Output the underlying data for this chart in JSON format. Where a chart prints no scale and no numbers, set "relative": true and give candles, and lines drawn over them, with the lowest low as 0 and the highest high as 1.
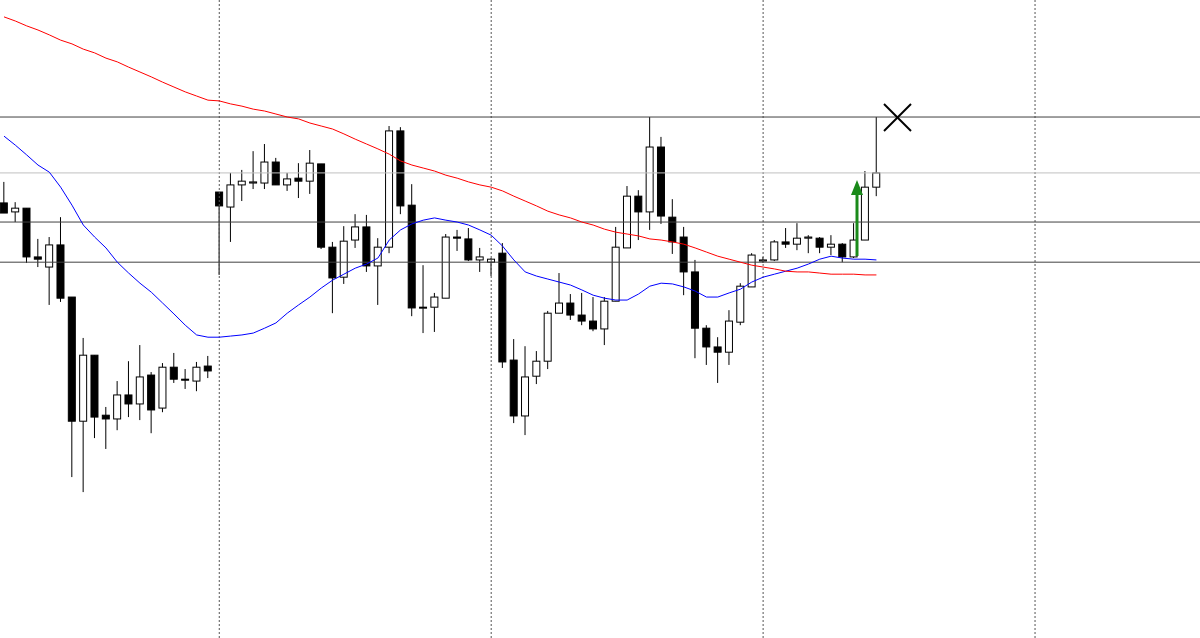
{
  "chart_data": {
    "type": "candlestick",
    "relative": true,
    "marker": "none",
    "grid": "x",
    "categories": [
      null,
      null,
      null,
      null,
      null,
      null,
      null,
      null,
      null,
      null,
      null,
      null,
      null,
      null,
      null,
      null,
      null,
      null,
      null,
      null,
      null,
      null,
      null,
      null,
      null,
      null,
      null,
      null,
      null,
      null,
      null,
      null,
      null,
      null,
      null,
      null,
      null,
      null,
      null,
      null,
      null,
      null,
      null,
      null,
      null,
      null,
      null,
      null,
      null,
      null,
      null,
      null,
      null,
      null,
      null,
      null,
      null,
      null,
      null,
      null,
      null,
      null,
      null,
      null,
      null,
      null,
      null,
      null,
      null,
      null,
      null,
      null,
      null,
      null,
      null,
      null,
      null,
      null
    ],
    "ohlc": [
      [
        0.771,
        0.827,
        0.744,
        0.744
      ],
      [
        0.747,
        0.773,
        0.72,
        0.757
      ],
      [
        0.757,
        0.757,
        0.611,
        0.627
      ],
      [
        0.627,
        0.675,
        0.6,
        0.621
      ],
      [
        0.6,
        0.68,
        0.499,
        0.659
      ],
      [
        0.659,
        0.733,
        0.507,
        0.517
      ],
      [
        0.52,
        0.52,
        0.04,
        0.189
      ],
      [
        0.189,
        0.411,
        0,
        0.365
      ],
      [
        0.365,
        0.365,
        0.144,
        0.2
      ],
      [
        0.205,
        0.227,
        0.115,
        0.195
      ],
      [
        0.195,
        0.296,
        0.165,
        0.259
      ],
      [
        0.259,
        0.349,
        0.2,
        0.235
      ],
      [
        0.235,
        0.392,
        0.192,
        0.307
      ],
      [
        0.312,
        0.32,
        0.157,
        0.219
      ],
      [
        0.224,
        0.344,
        0.213,
        0.333
      ],
      [
        0.333,
        0.371,
        0.291,
        0.301
      ],
      [
        0.301,
        0.328,
        0.275,
        0.299
      ],
      [
        0.296,
        0.347,
        0.269,
        0.333
      ],
      [
        0.336,
        0.363,
        0.304,
        0.323
      ],
      [
        0.8,
        0.8,
        0.579,
        0.763
      ],
      [
        0.76,
        0.851,
        0.667,
        0.819
      ],
      [
        0.819,
        0.859,
        0.776,
        0.829
      ],
      [
        0.824,
        0.909,
        0.808,
        0.827
      ],
      [
        0.824,
        0.928,
        0.808,
        0.88
      ],
      [
        0.88,
        0.891,
        0.819,
        0.819
      ],
      [
        0.819,
        0.851,
        0.803,
        0.835
      ],
      [
        0.837,
        0.877,
        0.784,
        0.829
      ],
      [
        0.829,
        0.912,
        0.795,
        0.877
      ],
      [
        0.875,
        0.875,
        0.648,
        0.653
      ],
      [
        0.653,
        0.667,
        0.477,
        0.571
      ],
      [
        0.573,
        0.709,
        0.555,
        0.669
      ],
      [
        0.672,
        0.741,
        0.651,
        0.707
      ],
      [
        0.707,
        0.739,
        0.587,
        0.603
      ],
      [
        0.603,
        0.677,
        0.499,
        0.653
      ],
      [
        0.653,
        0.976,
        0.637,
        0.963
      ],
      [
        0.963,
        0.973,
        0.741,
        0.763
      ],
      [
        0.765,
        0.821,
        0.469,
        0.491
      ],
      [
        0.491,
        0.605,
        0.424,
        0.493
      ],
      [
        0.493,
        0.531,
        0.427,
        0.52
      ],
      [
        0.517,
        0.688,
        0.517,
        0.68
      ],
      [
        0.68,
        0.699,
        0.643,
        0.677
      ],
      [
        0.675,
        0.704,
        0.616,
        0.619
      ],
      [
        0.619,
        0.651,
        0.587,
        0.627
      ],
      [
        0.613,
        0.624,
        0.576,
        0.621
      ],
      [
        0.637,
        0.664,
        0.331,
        0.347
      ],
      [
        0.352,
        0.408,
        0.184,
        0.203
      ],
      [
        0.203,
        0.389,
        0.152,
        0.307
      ],
      [
        0.309,
        0.376,
        0.288,
        0.349
      ],
      [
        0.349,
        0.483,
        0.328,
        0.477
      ],
      [
        0.477,
        0.584,
        0.477,
        0.504
      ],
      [
        0.504,
        0.528,
        0.459,
        0.472
      ],
      [
        0.472,
        0.531,
        0.445,
        0.456
      ],
      [
        0.456,
        0.52,
        0.429,
        0.435
      ],
      [
        0.435,
        0.52,
        0.392,
        0.509
      ],
      [
        0.509,
        0.707,
        0.509,
        0.653
      ],
      [
        0.651,
        0.816,
        0.651,
        0.789
      ],
      [
        0.789,
        0.805,
        0.672,
        0.747
      ],
      [
        0.747,
        1,
        0.699,
        0.92
      ],
      [
        0.92,
        0.947,
        0.715,
        0.736
      ],
      [
        0.733,
        0.781,
        0.635,
        0.667
      ],
      [
        0.68,
        0.707,
        0.525,
        0.587
      ],
      [
        0.587,
        0.619,
        0.357,
        0.437
      ],
      [
        0.437,
        0.445,
        0.339,
        0.387
      ],
      [
        0.387,
        0.413,
        0.291,
        0.373
      ],
      [
        0.373,
        0.485,
        0.339,
        0.456
      ],
      [
        0.453,
        0.557,
        0.445,
        0.549
      ],
      [
        0.547,
        0.637,
        0.547,
        0.632
      ],
      [
        0.616,
        0.627,
        0.611,
        0.619
      ],
      [
        0.619,
        0.672,
        0.616,
        0.667
      ],
      [
        0.667,
        0.704,
        0.651,
        0.661
      ],
      [
        0.661,
        0.717,
        0.645,
        0.677
      ],
      [
        0.677,
        0.685,
        0.637,
        0.68
      ],
      [
        0.677,
        0.68,
        0.637,
        0.653
      ],
      [
        0.653,
        0.685,
        0.632,
        0.661
      ],
      [
        0.661,
        0.664,
        0.613,
        0.627
      ],
      [
        0.627,
        0.717,
        0.624,
        0.672
      ],
      [
        0.672,
        0.856,
        0.672,
        0.813
      ],
      [
        0.813,
        1,
        0.789,
        0.851
      ]
    ],
    "series": [
      {
        "type": "line",
        "color": "#0000ff",
        "values": [
          0.949,
          0.925,
          0.899,
          0.872,
          0.853,
          0.813,
          0.765,
          0.712,
          0.68,
          0.651,
          0.613,
          0.584,
          0.557,
          0.533,
          0.504,
          0.475,
          0.445,
          0.419,
          0.413,
          0.413,
          0.416,
          0.419,
          0.424,
          0.437,
          0.451,
          0.477,
          0.499,
          0.52,
          0.544,
          0.565,
          0.581,
          0.597,
          0.608,
          0.624,
          0.672,
          0.699,
          0.715,
          0.725,
          0.731,
          0.725,
          0.72,
          0.712,
          0.699,
          0.685,
          0.656,
          0.619,
          0.587,
          0.576,
          0.568,
          0.56,
          0.552,
          0.539,
          0.525,
          0.517,
          0.512,
          0.512,
          0.528,
          0.549,
          0.557,
          0.555,
          0.547,
          0.536,
          0.52,
          0.52,
          0.531,
          0.541,
          0.56,
          0.573,
          0.581,
          0.589,
          0.597,
          0.608,
          0.621,
          0.629,
          0.624,
          0.621,
          0.621,
          0.619
        ]
      },
      {
        "type": "line",
        "color": "#ff0000",
        "values": [
          1.267,
          1.256,
          1.243,
          1.232,
          1.219,
          1.205,
          1.195,
          1.181,
          1.171,
          1.157,
          1.147,
          1.133,
          1.12,
          1.107,
          1.093,
          1.08,
          1.067,
          1.056,
          1.045,
          1.043,
          1.035,
          1.029,
          1.021,
          1.016,
          1.008,
          1,
          0.995,
          0.984,
          0.976,
          0.968,
          0.955,
          0.941,
          0.928,
          0.915,
          0.901,
          0.883,
          0.872,
          0.864,
          0.856,
          0.845,
          0.837,
          0.827,
          0.819,
          0.813,
          0.803,
          0.789,
          0.776,
          0.763,
          0.749,
          0.739,
          0.731,
          0.72,
          0.712,
          0.701,
          0.693,
          0.688,
          0.683,
          0.675,
          0.672,
          0.667,
          0.661,
          0.651,
          0.64,
          0.629,
          0.621,
          0.613,
          0.605,
          0.6,
          0.595,
          0.589,
          0.587,
          0.587,
          0.584,
          0.581,
          0.581,
          0.581,
          0.579,
          0.579
        ]
      }
    ],
    "ref_lines": [
      {
        "axis": "y",
        "value": 1,
        "color": "#404040"
      },
      {
        "axis": "y",
        "value": 0.851,
        "color": "#c0c0c0"
      },
      {
        "axis": "y",
        "value": 0.72,
        "color": "#404040"
      },
      {
        "axis": "y",
        "value": 0.613,
        "color": "#404040"
      }
    ]
  }
}
